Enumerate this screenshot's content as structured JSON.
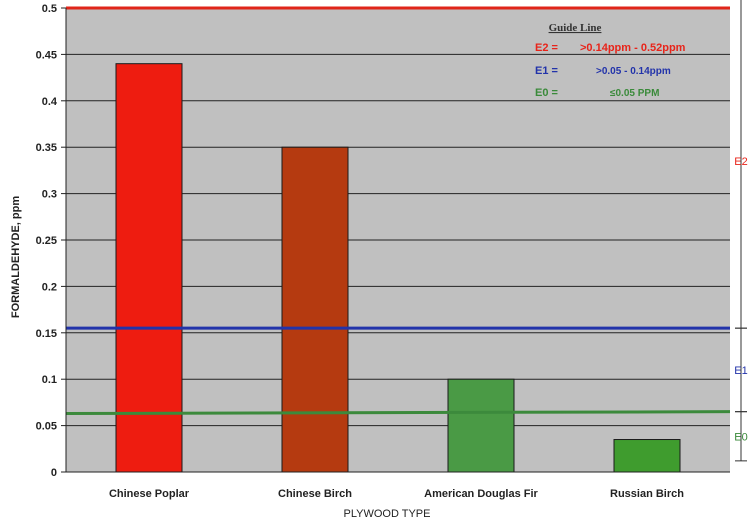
{
  "chart_data": {
    "type": "bar",
    "categories": [
      "Chinese Poplar",
      "Chinese Birch",
      "American Douglas Fir",
      "Russian Birch"
    ],
    "values": [
      0.44,
      0.35,
      0.1,
      0.035
    ],
    "bar_colors": [
      "#ee1c10",
      "#b53a10",
      "#4a9a45",
      "#3f9c2e"
    ],
    "xlabel": "PLYWOOD TYPE",
    "ylabel": "FORMALDEHYDE, ppm",
    "ylim": [
      0,
      0.5
    ],
    "yticks": [
      0,
      0.05,
      0.1,
      0.15,
      0.2,
      0.25,
      0.3,
      0.35,
      0.4,
      0.45,
      0.5
    ],
    "ytick_labels": [
      "0",
      "0.05",
      "0.1",
      "0.15",
      "0.2",
      "0.25",
      "0.3",
      "0.35",
      "0.4",
      "0.45",
      "0.5"
    ],
    "grid": true,
    "plot_background": "#c0c0c0",
    "reference_lines": [
      {
        "value": 0.5,
        "color": "#e0261a"
      },
      {
        "value": 0.155,
        "color": "#2233aa"
      },
      {
        "value": 0.063,
        "value_end": 0.065,
        "color": "#3c8a3c"
      }
    ],
    "guide": {
      "title": "Guide Line",
      "entries": [
        {
          "code": "E2 =",
          "range": ">0.14ppm - 0.52ppm",
          "color": "#e8241a"
        },
        {
          "code": "E1 =",
          "range": ">0.05 - 0.14ppm",
          "color": "#2233aa"
        },
        {
          "code": "E0 =",
          "range": "≤0.05 PPM",
          "color": "#3a8a3a"
        }
      ]
    },
    "bands": [
      {
        "label": "E2",
        "from": 0.155,
        "to": 0.515,
        "color": "#e8241a"
      },
      {
        "label": "E1",
        "from": 0.065,
        "to": 0.155,
        "color": "#2233aa"
      },
      {
        "label": "E0",
        "from": 0.012,
        "to": 0.065,
        "color": "#3a8a3a"
      }
    ]
  }
}
